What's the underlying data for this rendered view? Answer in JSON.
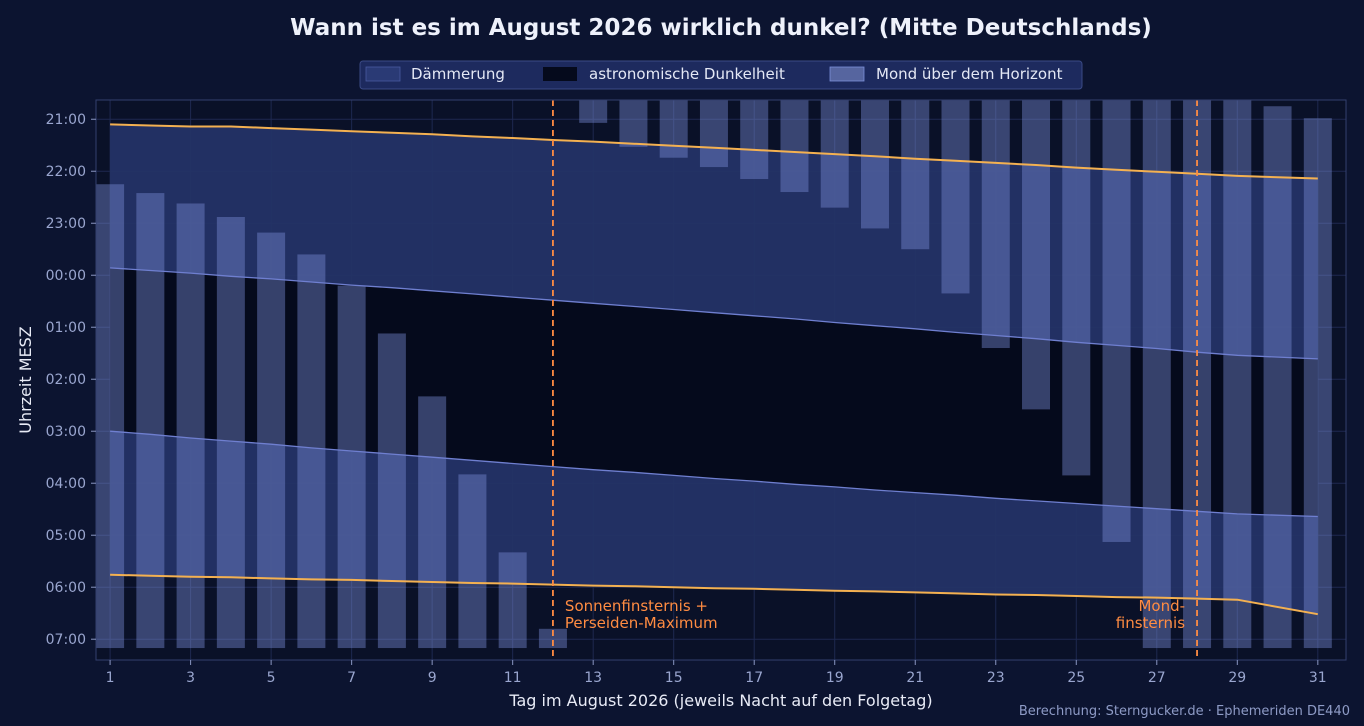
{
  "chart_data": {
    "type": "bar",
    "title": "Wann ist es im August 2026 wirklich dunkel? (Mitte Deutschlands)",
    "xlabel": "Tag im August 2026 (jeweils Nacht auf den Folgetag)",
    "ylabel": "Uhrzeit MESZ",
    "x_ticks": [
      1,
      3,
      5,
      7,
      9,
      11,
      13,
      15,
      17,
      19,
      21,
      23,
      25,
      27,
      29,
      31
    ],
    "y_ticks": [
      "21:00",
      "22:00",
      "23:00",
      "00:00",
      "01:00",
      "02:00",
      "03:00",
      "04:00",
      "05:00",
      "06:00",
      "07:00"
    ],
    "y_range_hours_after_midnight": [
      -3.37,
      7.4
    ],
    "legend": {
      "position": "top-center",
      "items": [
        {
          "label": "Dämmerung",
          "color": "#2a3a75"
        },
        {
          "label": "astronomische Dunkelheit",
          "color": "#050a1c"
        },
        {
          "label": "Mond über dem Horizont",
          "color": "#7c8fd9"
        }
      ]
    },
    "days": [
      1,
      2,
      3,
      4,
      5,
      6,
      7,
      8,
      9,
      10,
      11,
      12,
      13,
      14,
      15,
      16,
      17,
      18,
      19,
      20,
      21,
      22,
      23,
      24,
      25,
      26,
      27,
      28,
      29,
      31
    ],
    "sunset": [
      -2.9,
      -2.88,
      -2.86,
      -2.86,
      -2.83,
      -2.8,
      -2.77,
      -2.74,
      -2.71,
      -2.67,
      -2.64,
      -2.6,
      -2.57,
      -2.53,
      -2.49,
      -2.45,
      -2.41,
      -2.37,
      -2.33,
      -2.29,
      -2.24,
      -2.2,
      -2.16,
      -2.12,
      -2.07,
      -2.03,
      -1.99,
      -1.95,
      -1.91,
      -1.86
    ],
    "astro_dusk": [
      -0.14,
      -0.09,
      -0.04,
      0.02,
      0.07,
      0.13,
      0.19,
      0.24,
      0.3,
      0.36,
      0.42,
      0.48,
      0.54,
      0.6,
      0.66,
      0.72,
      0.78,
      0.84,
      0.91,
      0.97,
      1.03,
      1.1,
      1.16,
      1.22,
      1.29,
      1.35,
      1.41,
      1.48,
      1.54,
      1.61
    ],
    "astro_dawn": [
      3.0,
      3.06,
      3.13,
      3.19,
      3.25,
      3.32,
      3.38,
      3.44,
      3.5,
      3.56,
      3.62,
      3.68,
      3.74,
      3.79,
      3.85,
      3.91,
      3.96,
      4.02,
      4.07,
      4.13,
      4.18,
      4.23,
      4.29,
      4.34,
      4.39,
      4.44,
      4.49,
      4.54,
      4.59,
      4.64
    ],
    "sunrise": [
      5.76,
      5.78,
      5.8,
      5.81,
      5.83,
      5.85,
      5.86,
      5.88,
      5.9,
      5.92,
      5.93,
      5.95,
      5.97,
      5.98,
      6.0,
      6.02,
      6.03,
      6.05,
      6.07,
      6.08,
      6.1,
      6.12,
      6.14,
      6.15,
      6.17,
      6.19,
      6.2,
      6.22,
      6.24,
      6.52
    ],
    "moon_bar_days": [
      1,
      2,
      3,
      4,
      5,
      6,
      7,
      8,
      9,
      10,
      11,
      12,
      13,
      14,
      15,
      16,
      17,
      18,
      19,
      20,
      21,
      22,
      23,
      24,
      25,
      26,
      27,
      28,
      29,
      30,
      31
    ],
    "moon_rise": [
      -1.75,
      -1.58,
      -1.38,
      -1.12,
      -0.82,
      -0.4,
      0.2,
      1.12,
      2.33,
      3.83,
      5.33,
      6.8,
      -3.37,
      -3.37,
      -3.37,
      -3.37,
      -3.37,
      -3.37,
      -3.37,
      -3.37,
      -3.37,
      -3.37,
      -3.37,
      -3.37,
      -3.37,
      -3.37,
      -3.37,
      -3.37,
      -3.37,
      -3.25,
      -3.02
    ],
    "moon_set": [
      7.17,
      7.17,
      7.17,
      7.17,
      7.17,
      7.17,
      7.17,
      7.17,
      7.17,
      7.17,
      7.17,
      7.17,
      -2.93,
      -2.47,
      -2.26,
      -2.08,
      -1.85,
      -1.6,
      -1.3,
      -0.9,
      -0.5,
      0.35,
      1.4,
      2.58,
      3.85,
      5.13,
      7.17,
      7.17,
      7.17,
      7.17,
      7.17
    ],
    "annotations": [
      {
        "x": 12,
        "text_lines": [
          "Sonnenfinsternis +",
          "Perseiden-Maximum"
        ],
        "align": "right"
      },
      {
        "x": 28,
        "text_lines": [
          "Mond-",
          "finsternis"
        ],
        "align": "left"
      }
    ],
    "credit": "Berechnung: Sterngucker.de · Ephemeriden DE440"
  }
}
